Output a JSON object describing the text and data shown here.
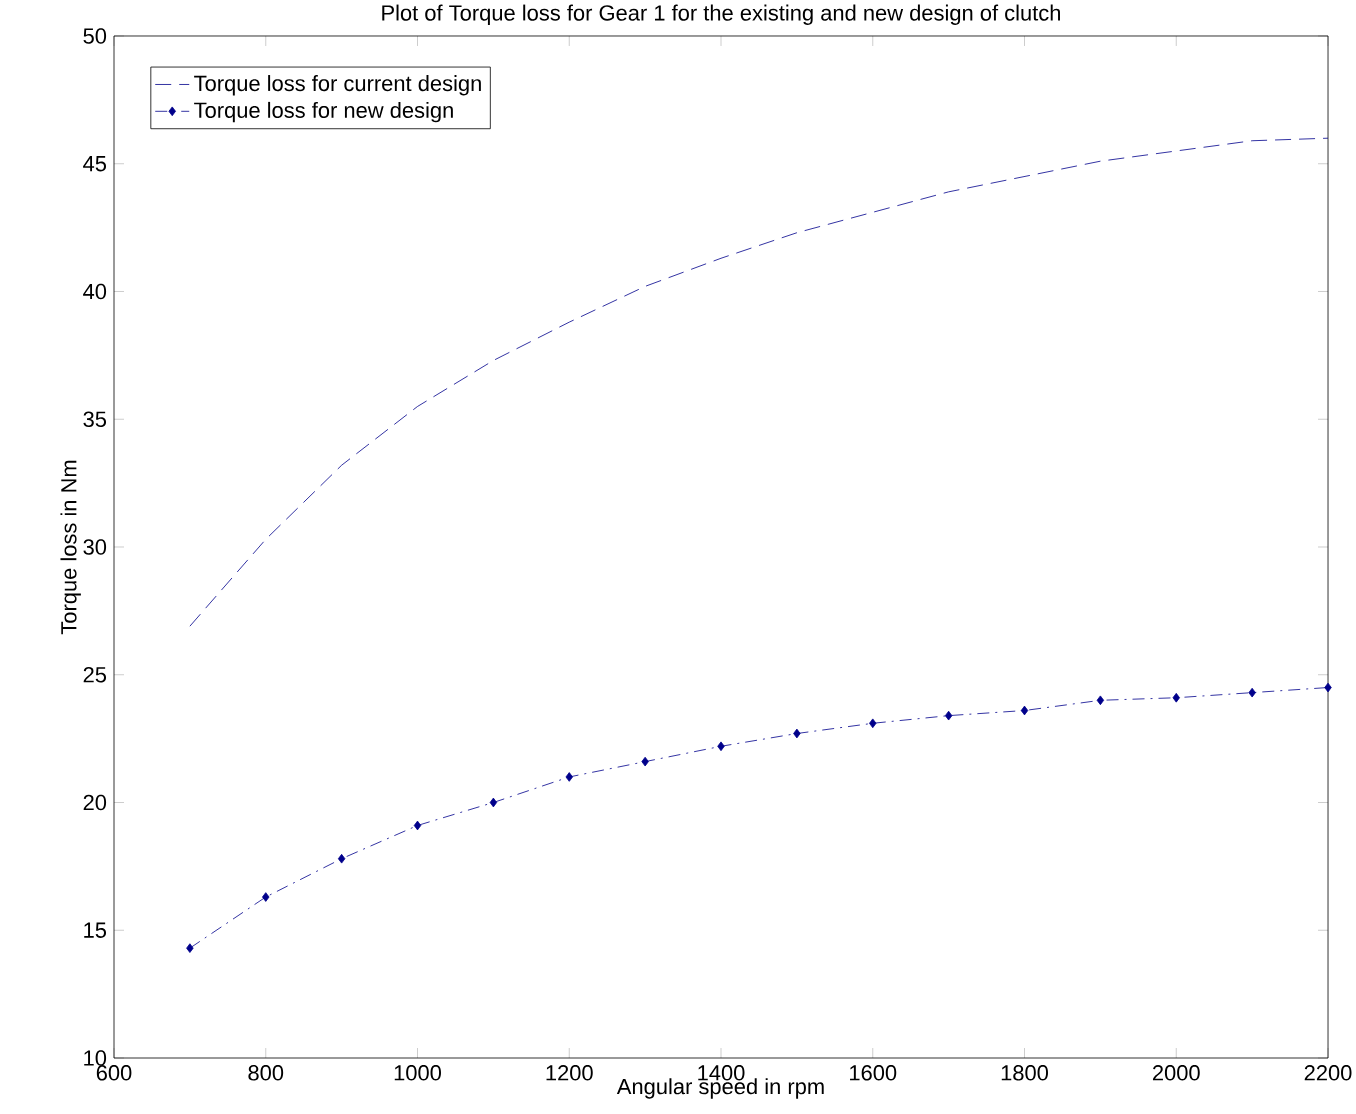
{
  "chart_data": {
    "type": "line",
    "title": "Plot of Torque loss for Gear 1 for the existing and new design of clutch",
    "xlabel": "Angular speed in rpm",
    "ylabel": "Torque loss in Nm",
    "x": [
      700,
      800,
      900,
      1000,
      1100,
      1200,
      1300,
      1400,
      1500,
      1600,
      1700,
      1800,
      1900,
      2000,
      2100,
      2200
    ],
    "series": [
      {
        "name": "Torque loss for current design",
        "color": "#00008b",
        "line_style": "dashed",
        "marker": "none",
        "values": [
          26.9,
          30.3,
          33.2,
          35.5,
          37.3,
          38.8,
          40.2,
          41.3,
          42.3,
          43.1,
          43.9,
          44.5,
          45.1,
          45.5,
          45.9,
          46.0
        ]
      },
      {
        "name": "Torque loss for new design",
        "color": "#00008b",
        "line_style": "dashdot",
        "marker": "diamond",
        "values": [
          14.3,
          16.3,
          17.8,
          19.1,
          20.0,
          21.0,
          21.6,
          22.2,
          22.7,
          23.1,
          23.4,
          23.6,
          24.0,
          24.1,
          24.3,
          24.5
        ]
      }
    ],
    "xlim": [
      600,
      2200
    ],
    "ylim": [
      10,
      50
    ],
    "xticks": [
      600,
      800,
      1000,
      1200,
      1400,
      1600,
      1800,
      2000,
      2200
    ],
    "yticks": [
      10,
      15,
      20,
      25,
      30,
      35,
      40,
      45,
      50
    ],
    "grid": false,
    "legend": "top left"
  }
}
